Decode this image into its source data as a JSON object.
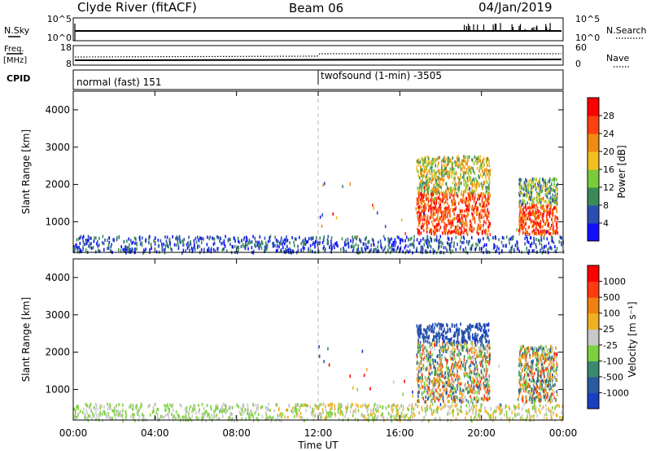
{
  "header": {
    "station": "Clyde River (fitACF)",
    "beam": "Beam 06",
    "date": "04/Jan/2019"
  },
  "strips": {
    "nsky_label": "N.Sky",
    "nsky_ticks": [
      "10^5",
      "10^0"
    ],
    "nsearch_label": "N.Search",
    "nsearch_ticks": [
      "10^5",
      "10^0"
    ],
    "freq_label_line1": "Freq.",
    "freq_label_line2": "[MHz]",
    "freq_ticks": [
      "18",
      "8"
    ],
    "nave_label": "Nave",
    "nave_ticks": [
      "60",
      "0"
    ],
    "cpid_label": "CPID",
    "cpid_segments": [
      {
        "label": "normal (fast) 151",
        "start_hour": 0,
        "end_hour": 12
      },
      {
        "label": "twofsound (1-min) -3505",
        "start_hour": 12,
        "end_hour": 24
      }
    ]
  },
  "chart_data": [
    {
      "type": "heatmap",
      "title": "Power",
      "quantity": "power",
      "ylabel": "Slant Range [km]",
      "ylim": [
        180,
        4500
      ],
      "yticks": [
        1000,
        2000,
        3000,
        4000
      ],
      "xlim_hours": [
        0,
        24
      ],
      "colorbar_label": "Power [dB]",
      "colorbar_ticks": [
        "4",
        "8",
        "12",
        "16",
        "20",
        "24",
        "28"
      ],
      "colorbar_colors": [
        "#1010ff",
        "#2a4fb0",
        "#3c8a5a",
        "#7acc3a",
        "#f0c020",
        "#f08a10",
        "#ff4010",
        "#ff0000"
      ]
    },
    {
      "type": "heatmap",
      "title": "Velocity",
      "quantity": "velocity",
      "ylabel": "Slant Range [km]",
      "ylim": [
        180,
        4500
      ],
      "yticks": [
        1000,
        2000,
        3000,
        4000
      ],
      "xlim_hours": [
        0,
        24
      ],
      "colorbar_label": "Velocity [m s⁻¹]",
      "colorbar_ticks": [
        "1000",
        "500",
        "100",
        "25",
        "-25",
        "-100",
        "-500",
        "-1000"
      ],
      "colorbar_colors": [
        "#1a3fc0",
        "#2a5aa0",
        "#3a8a70",
        "#7ed040",
        "#c8c8c8",
        "#f0b020",
        "#f08010",
        "#ff3a10",
        "#ff0000"
      ]
    }
  ],
  "xaxis": {
    "ticks": [
      "00:00",
      "04:00",
      "08:00",
      "12:00",
      "16:00",
      "20:00",
      "00:00"
    ],
    "label": "Time UT"
  }
}
